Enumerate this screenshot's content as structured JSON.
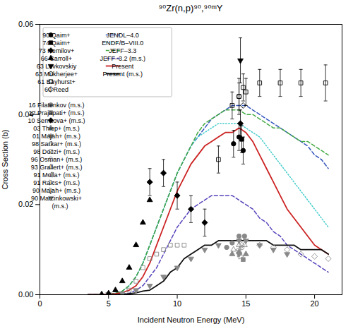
{
  "chart_data": {
    "type": "scatter",
    "title": "⁹⁰Zr(n,p)⁹⁰,⁹⁰ᵐY",
    "xlabel": "Incident Neutron Energy (MeV)",
    "ylabel": "Cross Section (b)",
    "xlim": [
      0,
      22
    ],
    "ylim": [
      0,
      0.06
    ],
    "xticks": [
      0,
      5,
      10,
      15,
      20
    ],
    "yticks": [
      {
        "value": 0,
        "label": "0.00"
      },
      0.02,
      0.04,
      0.06
    ],
    "grid": false,
    "legend": "upper left",
    "series": [
      {
        "name": "90 Qaim+",
        "type": "scatter",
        "color": "black",
        "marker": "circle",
        "x": [
          14.1,
          14.5,
          14.8
        ],
        "values": [
          0.0335,
          0.035,
          0.032
        ],
        "yerr": [
          0.003,
          0.003,
          0.003
        ]
      },
      {
        "name": "74 Qaim+",
        "type": "scatter",
        "color": "black",
        "marker": "square",
        "x": [
          14.7
        ],
        "values": [
          0.0345
        ],
        "yerr": [
          0.003
        ]
      },
      {
        "name": "73 Nemilov+",
        "type": "scatter",
        "color": "black",
        "marker": "diamond",
        "x": [
          14.6
        ],
        "values": [
          0.038
        ],
        "yerr": [
          0.003
        ]
      },
      {
        "name": "66 Carroll+",
        "type": "scatter",
        "color": "black",
        "marker": "triangle-up",
        "x": [
          4.5,
          5.0,
          5.5,
          6.0,
          6.5,
          7.0,
          7.5,
          8.0
        ],
        "values": [
          0.0001,
          0.0003,
          0.001,
          0.003,
          0.006,
          0.011,
          0.016,
          0.021
        ]
      },
      {
        "name": "63 Levkovskiy",
        "type": "scatter",
        "color": "black",
        "marker": "triangle-down",
        "x": [
          14.6
        ],
        "values": [
          0.052
        ],
        "yerr": [
          0.005
        ]
      },
      {
        "name": "63 Mukherjee+",
        "type": "scatter",
        "color": "black",
        "marker": "circle-open",
        "x": [
          14.5
        ],
        "values": [
          0.044
        ],
        "yerr": [
          0.004
        ]
      },
      {
        "name": "61 Bayhurst+",
        "type": "scatter",
        "color": "black",
        "marker": "square-open",
        "x": [
          13.0,
          14.0,
          14.5,
          14.8,
          15.0,
          16.0,
          17.5,
          19.0,
          20.8
        ],
        "values": [
          0.03,
          0.042,
          0.044,
          0.046,
          0.045,
          0.047,
          0.047,
          0.047,
          0.047
        ],
        "yerr": [
          0.003,
          0.003,
          0.003,
          0.003,
          0.003,
          0.003,
          0.003,
          0.003,
          0.004
        ]
      },
      {
        "name": "60 Reed",
        "type": "scatter",
        "color": "black",
        "marker": "diamond-open",
        "x": [
          14.8
        ],
        "values": [
          0.042
        ]
      },
      {
        "name": "JENDL–4.0",
        "type": "line",
        "color": "#3355bb",
        "line_style": "dashed",
        "x": [
          3.5,
          4.0,
          4.5,
          5.0,
          5.5,
          6.0,
          6.5,
          7.0,
          7.5,
          8.0,
          8.5,
          9.0,
          9.5,
          10.0,
          10.5,
          11.0,
          11.5,
          12.0,
          12.5,
          13.0,
          13.5,
          14.0,
          14.5,
          15.0,
          15.5,
          16.0,
          16.5,
          17.0,
          17.5,
          18.0,
          18.5,
          19.0,
          19.5,
          20.0,
          20.5,
          21.0
        ],
        "values": [
          0.0,
          0.0,
          0.0,
          0.0001,
          0.0003,
          0.0008,
          0.002,
          0.004,
          0.007,
          0.011,
          0.015,
          0.019,
          0.023,
          0.027,
          0.03,
          0.033,
          0.035,
          0.037,
          0.039,
          0.04,
          0.041,
          0.042,
          0.042,
          0.042,
          0.041,
          0.04,
          0.039,
          0.038,
          0.037,
          0.036,
          0.035,
          0.034,
          0.033,
          0.031,
          0.03,
          0.028
        ]
      },
      {
        "name": "ENDF/B–VIII.0",
        "type": "line",
        "color": "#44cccc",
        "line_style": "dotted",
        "x": [
          3.5,
          4.0,
          4.5,
          5.0,
          5.5,
          6.0,
          6.5,
          7.0,
          7.5,
          8.0,
          8.5,
          9.0,
          9.5,
          10.0,
          10.5,
          11.0,
          11.5,
          12.0,
          12.5,
          13.0,
          13.5,
          14.0,
          14.5,
          15.0,
          15.5,
          16.0,
          16.5,
          17.0,
          17.5,
          18.0,
          18.5,
          19.0,
          19.5,
          20.0,
          20.5,
          21.0
        ],
        "values": [
          0.0,
          0.0,
          0.0,
          0.0001,
          0.0003,
          0.0008,
          0.002,
          0.004,
          0.007,
          0.011,
          0.015,
          0.019,
          0.023,
          0.027,
          0.03,
          0.033,
          0.035,
          0.036,
          0.037,
          0.038,
          0.038,
          0.038,
          0.038,
          0.037,
          0.036,
          0.035,
          0.033,
          0.031,
          0.029,
          0.027,
          0.025,
          0.023,
          0.021,
          0.019,
          0.017,
          0.015
        ]
      },
      {
        "name": "JEFF–3.3",
        "type": "line",
        "color": "#44aa44",
        "line_style": "dashed",
        "x": [
          3.5,
          4.0,
          4.5,
          5.0,
          5.5,
          6.0,
          6.5,
          7.0,
          7.5,
          8.0,
          8.5,
          9.0,
          9.5,
          10.0,
          10.5,
          11.0,
          11.5,
          12.0,
          12.5,
          13.0,
          13.5,
          14.0,
          14.5,
          15.0,
          15.5,
          16.0,
          16.5,
          17.0,
          17.5,
          18.0,
          18.5,
          19.0,
          19.5,
          20.0,
          20.5,
          21.0
        ],
        "values": [
          0.0,
          0.0,
          0.0,
          0.0001,
          0.0003,
          0.0008,
          0.002,
          0.004,
          0.007,
          0.011,
          0.015,
          0.019,
          0.023,
          0.027,
          0.03,
          0.033,
          0.036,
          0.038,
          0.039,
          0.04,
          0.041,
          0.041,
          0.041,
          0.04,
          0.04,
          0.039,
          0.038,
          0.037,
          0.037,
          0.036,
          0.035,
          0.034,
          0.034,
          0.033,
          0.032,
          0.031
        ]
      },
      {
        "name": "JEFF–3.2 (m.s.)",
        "type": "line",
        "color": "#5544bb",
        "line_style": "dashed",
        "x": [
          3.5,
          4.0,
          4.5,
          5.0,
          5.5,
          6.0,
          6.5,
          7.0,
          7.5,
          8.0,
          8.5,
          9.0,
          9.5,
          10.0,
          10.5,
          11.0,
          11.5,
          12.0,
          12.5,
          13.0,
          13.5,
          14.0,
          14.5,
          15.0,
          15.5,
          16.0,
          16.5,
          17.0,
          17.5,
          18.0,
          18.5,
          19.0,
          19.5,
          20.0,
          20.5,
          21.0
        ],
        "values": [
          0.0,
          0.0,
          0.0,
          0.0,
          0.0,
          0.0001,
          0.0003,
          0.001,
          0.002,
          0.004,
          0.006,
          0.009,
          0.012,
          0.015,
          0.017,
          0.019,
          0.02,
          0.021,
          0.022,
          0.022,
          0.022,
          0.022,
          0.021,
          0.02,
          0.019,
          0.017,
          0.016,
          0.014,
          0.013,
          0.011,
          0.01,
          0.009,
          0.008,
          0.007,
          0.006,
          0.005
        ]
      },
      {
        "name": "Present",
        "type": "line",
        "color": "#cc2222",
        "line_style": "solid",
        "x": [
          3.5,
          4.0,
          4.5,
          5.0,
          5.5,
          6.0,
          6.5,
          7.0,
          7.5,
          8.0,
          8.5,
          9.0,
          9.5,
          10.0,
          10.5,
          11.0,
          11.5,
          12.0,
          12.5,
          13.0,
          13.5,
          14.0,
          14.5,
          15.0,
          15.5,
          16.0,
          16.5,
          17.0,
          17.5,
          18.0,
          18.5,
          19.0,
          19.5,
          20.0,
          20.5,
          21.0
        ],
        "values": [
          0.0,
          0.0,
          0.0,
          0.0001,
          0.0002,
          0.0005,
          0.001,
          0.002,
          0.004,
          0.007,
          0.011,
          0.015,
          0.019,
          0.023,
          0.026,
          0.029,
          0.031,
          0.033,
          0.034,
          0.035,
          0.036,
          0.036,
          0.037,
          0.036,
          0.034,
          0.031,
          0.028,
          0.025,
          0.022,
          0.019,
          0.017,
          0.015,
          0.013,
          0.011,
          0.01,
          0.009
        ]
      },
      {
        "name": "Present (m.s.)",
        "type": "line",
        "color": "#111111",
        "line_style": "solid",
        "x": [
          3.5,
          4.0,
          4.5,
          5.0,
          5.5,
          6.0,
          6.5,
          7.0,
          7.5,
          8.0,
          8.5,
          9.0,
          9.5,
          10.0,
          10.5,
          11.0,
          11.5,
          12.0,
          12.5,
          13.0,
          13.5,
          14.0,
          14.5,
          15.0,
          15.5,
          16.0,
          16.5,
          17.0,
          17.5,
          18.0,
          18.5,
          19.0,
          19.5,
          20.0,
          20.5,
          21.0
        ],
        "values": [
          0.0,
          0.0,
          0.0,
          0.0,
          0.0,
          0.0001,
          0.0002,
          0.0004,
          0.0008,
          0.001,
          0.002,
          0.003,
          0.005,
          0.006,
          0.008,
          0.009,
          0.01,
          0.011,
          0.011,
          0.012,
          0.012,
          0.012,
          0.012,
          0.012,
          0.012,
          0.012,
          0.012,
          0.011,
          0.011,
          0.011,
          0.011,
          0.01,
          0.01,
          0.01,
          0.01,
          0.009
        ]
      },
      {
        "name": "16 Filatenkov (m.s.)",
        "type": "scatter",
        "color": "#888888",
        "marker": "circle",
        "x": [
          13.6,
          14.0,
          14.5,
          14.9
        ],
        "values": [
          0.0105,
          0.0115,
          0.013,
          0.013
        ]
      },
      {
        "name": "12 Prajapati+ (m.s.)",
        "type": "scatter",
        "color": "#888888",
        "marker": "square",
        "x": [
          14.8
        ],
        "values": [
          0.0078
        ]
      },
      {
        "name": "10 Semkova+ (m.s.)",
        "type": "scatter",
        "color": "black",
        "marker": "diamond",
        "x": [
          8.0,
          9.0,
          10.0,
          11.0,
          12.0
        ],
        "values": [
          0.025,
          0.027,
          0.022,
          0.019,
          0.016
        ],
        "yerr": [
          0.003,
          0.003,
          0.003,
          0.003,
          0.003
        ]
      },
      {
        "name": "03 Thiep+ (m.s.)",
        "type": "scatter",
        "color": "#888888",
        "marker": "triangle-up",
        "x": [
          14.0,
          14.5,
          15.0
        ],
        "values": [
          0.009,
          0.0095,
          0.009
        ]
      },
      {
        "name": "01 Majah+ (m.s.)",
        "type": "scatter",
        "color": "#888888",
        "marker": "triangle-down",
        "x": [
          14.5
        ],
        "values": [
          0.009
        ]
      },
      {
        "name": "98 Sarkar+ (m.s.)",
        "type": "scatter",
        "color": "#888888",
        "marker": "circle-open",
        "x": [
          14.7
        ],
        "values": [
          0.0105
        ]
      },
      {
        "name": "98 Doczi+ (m.s.)",
        "type": "scatter",
        "color": "#888888",
        "marker": "square-open",
        "x": [
          6.5,
          7.0,
          7.5,
          8.0,
          8.5,
          9.0,
          9.5,
          10.0,
          10.5
        ],
        "values": [
          0.001,
          0.003,
          0.006,
          0.008,
          0.009,
          0.01,
          0.011,
          0.011,
          0.011
        ]
      },
      {
        "name": "96 Osman+ (m.s.)",
        "type": "scatter",
        "color": "#888888",
        "marker": "diamond-open",
        "x": [
          14.7,
          16.0,
          17.0,
          18.0,
          19.0,
          20.0,
          21.0
        ],
        "values": [
          0.011,
          0.011,
          0.0105,
          0.01,
          0.009,
          0.0085,
          0.008
        ]
      },
      {
        "name": "93 Grallert+ (m.s.)",
        "type": "scatter",
        "color": "#888888",
        "marker": "triangle-up-open",
        "x": [
          14.1,
          14.5,
          14.9
        ],
        "values": [
          0.01,
          0.011,
          0.011
        ]
      },
      {
        "name": "91 Molla+ (m.s.)",
        "type": "scatter",
        "color": "#888888",
        "marker": "triangle-left-open",
        "x": [
          14.5
        ],
        "values": [
          0.01
        ]
      },
      {
        "name": "91 Raics+ (m.s.)",
        "type": "scatter",
        "color": "#888888",
        "marker": "triangle-right-open",
        "x": [
          14.6
        ],
        "values": [
          0.0085
        ]
      },
      {
        "name": "90 Majah+ (m.s.)",
        "type": "scatter",
        "color": "#888888",
        "marker": "triangle-right-open",
        "x": [
          14.5
        ],
        "values": [
          0.009
        ]
      },
      {
        "name": "90 Marcinkowski+\n    (m.s.)",
        "type": "scatter",
        "color": "#888888",
        "marker": "triangle-down",
        "x": [
          5.0,
          6.0,
          7.0,
          8.0,
          9.0,
          10.0,
          11.0,
          12.0,
          13.0,
          14.5,
          15.0,
          16.0,
          17.0,
          18.0
        ],
        "values": [
          0.0001,
          0.0003,
          0.001,
          0.002,
          0.004,
          0.006,
          0.008,
          0.01,
          0.011,
          0.012,
          0.012,
          0.011,
          0.01,
          0.009
        ]
      }
    ]
  }
}
